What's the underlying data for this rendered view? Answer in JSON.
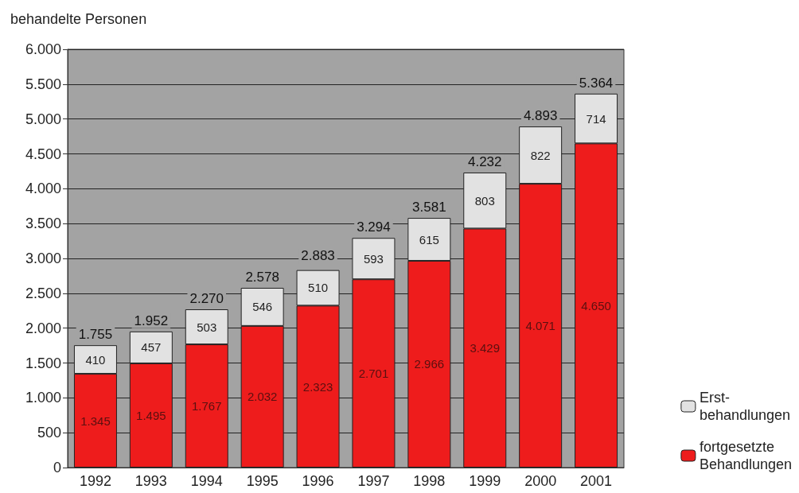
{
  "chart_data": {
    "type": "bar",
    "ylabel": "behandelte Personen",
    "categories": [
      "1992",
      "1993",
      "1994",
      "1995",
      "1996",
      "1997",
      "1998",
      "1999",
      "2000",
      "2001"
    ],
    "stacked": true,
    "series": [
      {
        "name": "fortgesetzte\nBehandlungen",
        "color": "#ee1c1c",
        "values": [
          1345,
          1495,
          1767,
          2032,
          2323,
          2701,
          2966,
          3429,
          4071,
          4650
        ],
        "value_labels": [
          "1.345",
          "1.495",
          "1.767",
          "2.032",
          "2.323",
          "2.701",
          "2.966",
          "3.429",
          "4.071",
          "4.650"
        ]
      },
      {
        "name": "Erst-\nbehandlungen",
        "color": "#e2e2e2",
        "values": [
          410,
          457,
          503,
          546,
          510,
          593,
          615,
          803,
          822,
          714
        ],
        "value_labels": [
          "410",
          "457",
          "503",
          "546",
          "510",
          "593",
          "615",
          "803",
          "822",
          "714"
        ]
      }
    ],
    "annotations": [
      {
        "text": "1.755",
        "x": "1992",
        "y": 1755
      },
      {
        "text": "1.952",
        "x": "1993",
        "y": 1952
      },
      {
        "text": "2.270",
        "x": "1994",
        "y": 2270
      },
      {
        "text": "2.578",
        "x": "1995",
        "y": 2578
      },
      {
        "text": "2.883",
        "x": "1996",
        "y": 2883
      },
      {
        "text": "3.294",
        "x": "1997",
        "y": 3294
      },
      {
        "text": "3.581",
        "x": "1998",
        "y": 3581
      },
      {
        "text": "4.232",
        "x": "1999",
        "y": 4232
      },
      {
        "text": "4.893",
        "x": "2000",
        "y": 4893
      },
      {
        "text": "5.364",
        "x": "2001",
        "y": 5364
      }
    ],
    "ylim": [
      0,
      6000
    ],
    "yticks": [
      0,
      500,
      {
        "value": 1000,
        "label": "1.000"
      },
      {
        "value": 1500,
        "label": "1.500"
      },
      {
        "value": 2000,
        "label": "2.000"
      },
      {
        "value": 2500,
        "label": "2.500"
      },
      {
        "value": 3000,
        "label": "3.000"
      },
      {
        "value": 3500,
        "label": "3.500"
      },
      {
        "value": 4000,
        "label": "4.000"
      },
      {
        "value": 4500,
        "label": "4.500"
      },
      {
        "value": 5000,
        "label": "5.000"
      },
      {
        "value": 5500,
        "label": "5.500"
      },
      {
        "value": 6000,
        "label": "6.000"
      }
    ],
    "grid": "y",
    "legend": "bottom right"
  }
}
